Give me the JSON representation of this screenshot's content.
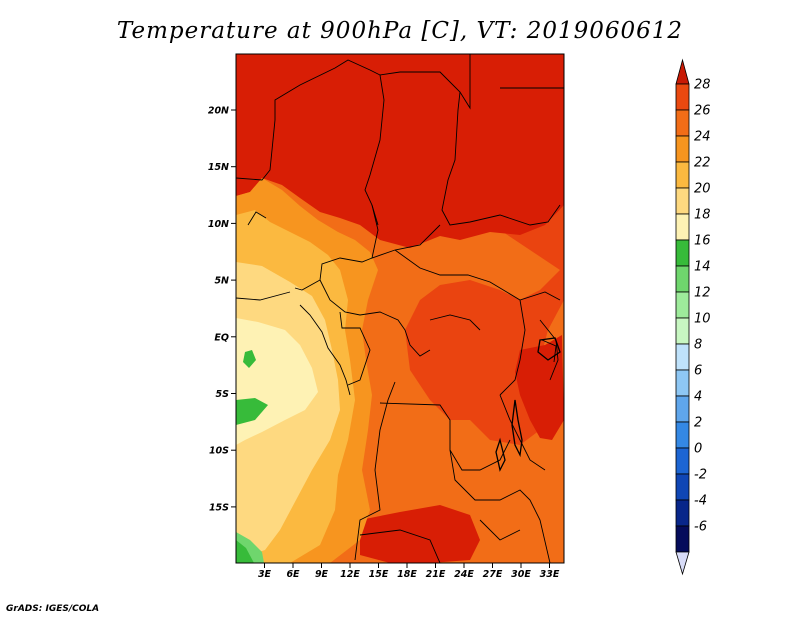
{
  "title": "Temperature at 900hPa [C], VT: 2019060612",
  "credit": "GrADS: IGES/COLA",
  "map": {
    "lat_labels": [
      "20N",
      "15N",
      "10N",
      "5N",
      "EQ",
      "5S",
      "10S",
      "15S"
    ],
    "lon_labels": [
      "3E",
      "6E",
      "9E",
      "12E",
      "15E",
      "18E",
      "21E",
      "24E",
      "27E",
      "30E",
      "33E"
    ],
    "colors": {
      "c28": "#d81e05",
      "c26": "#ea4410",
      "c24": "#f26d17",
      "c22": "#f7951f",
      "c20": "#fbb940",
      "c18": "#fed980",
      "c16": "#fef2b4",
      "c14": "#37bb3a",
      "c12": "#6fd66d",
      "boundary": "#000000"
    }
  },
  "colorbar": {
    "labels": [
      "28",
      "26",
      "24",
      "22",
      "20",
      "18",
      "16",
      "14",
      "12",
      "10",
      "8",
      "6",
      "4",
      "2",
      "0",
      "-2",
      "-4",
      "-6"
    ],
    "colors": [
      "#dc2e05",
      "#ea4910",
      "#f26d17",
      "#f7951f",
      "#fbb940",
      "#fed980",
      "#fef2b4",
      "#37bb3a",
      "#6fd66d",
      "#9eeb9b",
      "#c8f7c2",
      "#bfe2fb",
      "#8ec7f4",
      "#5fa6ec",
      "#3488e4",
      "#1c65d3",
      "#0f46b5",
      "#08268a",
      "#050c5b"
    ],
    "top_cap": "#c81a05",
    "bottom_cap": "#d8dcf8"
  }
}
